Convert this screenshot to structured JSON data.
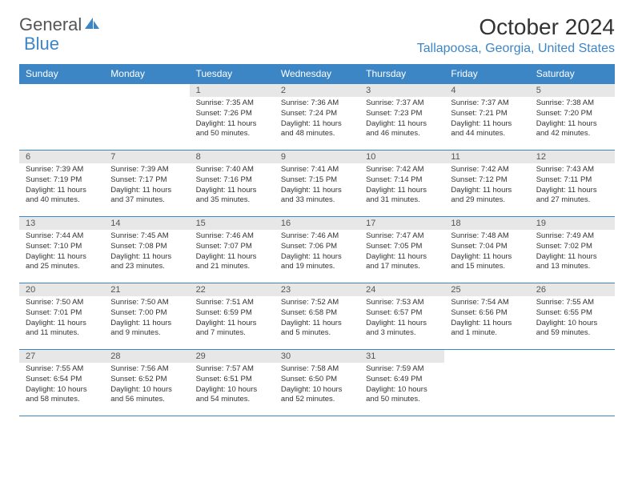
{
  "logo": {
    "word1": "General",
    "word2": "Blue"
  },
  "title": "October 2024",
  "location": "Tallapoosa, Georgia, United States",
  "colors": {
    "accent": "#3d86c6",
    "header_bg": "#3d86c6",
    "header_text": "#ffffff",
    "daynum_bg": "#e7e7e7",
    "text": "#333333"
  },
  "weekdays": [
    "Sunday",
    "Monday",
    "Tuesday",
    "Wednesday",
    "Thursday",
    "Friday",
    "Saturday"
  ],
  "weeks": [
    [
      null,
      null,
      {
        "n": "1",
        "sr": "Sunrise: 7:35 AM",
        "ss": "Sunset: 7:26 PM",
        "dl": "Daylight: 11 hours and 50 minutes."
      },
      {
        "n": "2",
        "sr": "Sunrise: 7:36 AM",
        "ss": "Sunset: 7:24 PM",
        "dl": "Daylight: 11 hours and 48 minutes."
      },
      {
        "n": "3",
        "sr": "Sunrise: 7:37 AM",
        "ss": "Sunset: 7:23 PM",
        "dl": "Daylight: 11 hours and 46 minutes."
      },
      {
        "n": "4",
        "sr": "Sunrise: 7:37 AM",
        "ss": "Sunset: 7:21 PM",
        "dl": "Daylight: 11 hours and 44 minutes."
      },
      {
        "n": "5",
        "sr": "Sunrise: 7:38 AM",
        "ss": "Sunset: 7:20 PM",
        "dl": "Daylight: 11 hours and 42 minutes."
      }
    ],
    [
      {
        "n": "6",
        "sr": "Sunrise: 7:39 AM",
        "ss": "Sunset: 7:19 PM",
        "dl": "Daylight: 11 hours and 40 minutes."
      },
      {
        "n": "7",
        "sr": "Sunrise: 7:39 AM",
        "ss": "Sunset: 7:17 PM",
        "dl": "Daylight: 11 hours and 37 minutes."
      },
      {
        "n": "8",
        "sr": "Sunrise: 7:40 AM",
        "ss": "Sunset: 7:16 PM",
        "dl": "Daylight: 11 hours and 35 minutes."
      },
      {
        "n": "9",
        "sr": "Sunrise: 7:41 AM",
        "ss": "Sunset: 7:15 PM",
        "dl": "Daylight: 11 hours and 33 minutes."
      },
      {
        "n": "10",
        "sr": "Sunrise: 7:42 AM",
        "ss": "Sunset: 7:14 PM",
        "dl": "Daylight: 11 hours and 31 minutes."
      },
      {
        "n": "11",
        "sr": "Sunrise: 7:42 AM",
        "ss": "Sunset: 7:12 PM",
        "dl": "Daylight: 11 hours and 29 minutes."
      },
      {
        "n": "12",
        "sr": "Sunrise: 7:43 AM",
        "ss": "Sunset: 7:11 PM",
        "dl": "Daylight: 11 hours and 27 minutes."
      }
    ],
    [
      {
        "n": "13",
        "sr": "Sunrise: 7:44 AM",
        "ss": "Sunset: 7:10 PM",
        "dl": "Daylight: 11 hours and 25 minutes."
      },
      {
        "n": "14",
        "sr": "Sunrise: 7:45 AM",
        "ss": "Sunset: 7:08 PM",
        "dl": "Daylight: 11 hours and 23 minutes."
      },
      {
        "n": "15",
        "sr": "Sunrise: 7:46 AM",
        "ss": "Sunset: 7:07 PM",
        "dl": "Daylight: 11 hours and 21 minutes."
      },
      {
        "n": "16",
        "sr": "Sunrise: 7:46 AM",
        "ss": "Sunset: 7:06 PM",
        "dl": "Daylight: 11 hours and 19 minutes."
      },
      {
        "n": "17",
        "sr": "Sunrise: 7:47 AM",
        "ss": "Sunset: 7:05 PM",
        "dl": "Daylight: 11 hours and 17 minutes."
      },
      {
        "n": "18",
        "sr": "Sunrise: 7:48 AM",
        "ss": "Sunset: 7:04 PM",
        "dl": "Daylight: 11 hours and 15 minutes."
      },
      {
        "n": "19",
        "sr": "Sunrise: 7:49 AM",
        "ss": "Sunset: 7:02 PM",
        "dl": "Daylight: 11 hours and 13 minutes."
      }
    ],
    [
      {
        "n": "20",
        "sr": "Sunrise: 7:50 AM",
        "ss": "Sunset: 7:01 PM",
        "dl": "Daylight: 11 hours and 11 minutes."
      },
      {
        "n": "21",
        "sr": "Sunrise: 7:50 AM",
        "ss": "Sunset: 7:00 PM",
        "dl": "Daylight: 11 hours and 9 minutes."
      },
      {
        "n": "22",
        "sr": "Sunrise: 7:51 AM",
        "ss": "Sunset: 6:59 PM",
        "dl": "Daylight: 11 hours and 7 minutes."
      },
      {
        "n": "23",
        "sr": "Sunrise: 7:52 AM",
        "ss": "Sunset: 6:58 PM",
        "dl": "Daylight: 11 hours and 5 minutes."
      },
      {
        "n": "24",
        "sr": "Sunrise: 7:53 AM",
        "ss": "Sunset: 6:57 PM",
        "dl": "Daylight: 11 hours and 3 minutes."
      },
      {
        "n": "25",
        "sr": "Sunrise: 7:54 AM",
        "ss": "Sunset: 6:56 PM",
        "dl": "Daylight: 11 hours and 1 minute."
      },
      {
        "n": "26",
        "sr": "Sunrise: 7:55 AM",
        "ss": "Sunset: 6:55 PM",
        "dl": "Daylight: 10 hours and 59 minutes."
      }
    ],
    [
      {
        "n": "27",
        "sr": "Sunrise: 7:55 AM",
        "ss": "Sunset: 6:54 PM",
        "dl": "Daylight: 10 hours and 58 minutes."
      },
      {
        "n": "28",
        "sr": "Sunrise: 7:56 AM",
        "ss": "Sunset: 6:52 PM",
        "dl": "Daylight: 10 hours and 56 minutes."
      },
      {
        "n": "29",
        "sr": "Sunrise: 7:57 AM",
        "ss": "Sunset: 6:51 PM",
        "dl": "Daylight: 10 hours and 54 minutes."
      },
      {
        "n": "30",
        "sr": "Sunrise: 7:58 AM",
        "ss": "Sunset: 6:50 PM",
        "dl": "Daylight: 10 hours and 52 minutes."
      },
      {
        "n": "31",
        "sr": "Sunrise: 7:59 AM",
        "ss": "Sunset: 6:49 PM",
        "dl": "Daylight: 10 hours and 50 minutes."
      },
      null,
      null
    ]
  ]
}
